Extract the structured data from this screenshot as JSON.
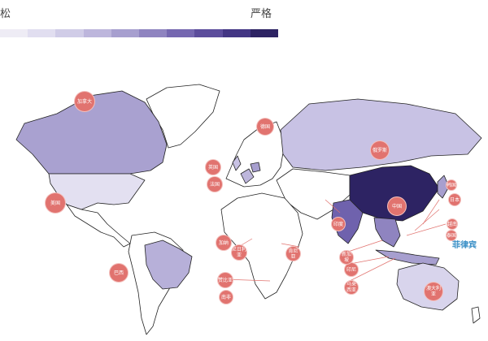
{
  "legend": {
    "low_label": "松",
    "high_label": "严格",
    "colors": [
      "#eeecf5",
      "#e1def0",
      "#d0cce7",
      "#bdb6dc",
      "#a79fcf",
      "#8f84c0",
      "#7567b0",
      "#5c4d9c",
      "#433684",
      "#2d2363"
    ]
  },
  "highlight_label": "菲律宾",
  "badges": [
    {
      "id": "canada",
      "text": "加拿大"
    },
    {
      "id": "usa",
      "text": "美国"
    },
    {
      "id": "brazil",
      "text": "巴西"
    },
    {
      "id": "uk",
      "text": "英国"
    },
    {
      "id": "france",
      "text": "法国"
    },
    {
      "id": "germany",
      "text": "德国"
    },
    {
      "id": "nigeria",
      "text": "尼日利亚"
    },
    {
      "id": "ghana",
      "text": "加纳"
    },
    {
      "id": "kenya",
      "text": "肯尼亚"
    },
    {
      "id": "zambia",
      "text": "赞比亚"
    },
    {
      "id": "south-africa",
      "text": "南非"
    },
    {
      "id": "russia",
      "text": "俄罗斯"
    },
    {
      "id": "india",
      "text": "印度"
    },
    {
      "id": "china",
      "text": "中国"
    },
    {
      "id": "australia",
      "text": "澳大利亚"
    },
    {
      "id": "indonesia",
      "text": "印尼"
    },
    {
      "id": "malaysia",
      "text": "马来西亚"
    },
    {
      "id": "singapore",
      "text": "新加坡"
    },
    {
      "id": "japan",
      "text": "日本"
    },
    {
      "id": "korea",
      "text": "韩国"
    },
    {
      "id": "vietnam",
      "text": "越南"
    },
    {
      "id": "thailand",
      "text": "泰国"
    }
  ]
}
